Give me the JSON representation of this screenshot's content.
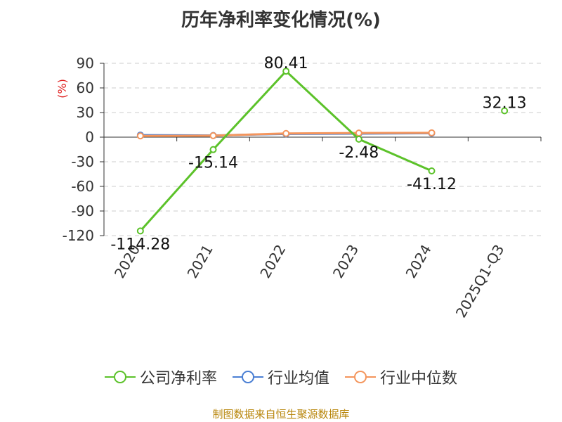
{
  "chart_data": {
    "type": "line",
    "title": "历年净利率变化情况(%)",
    "ylabel": "(%)",
    "xlabel": "",
    "categories": [
      "2020",
      "2021",
      "2022",
      "2023",
      "2024",
      "2025Q1-Q3"
    ],
    "ylim": [
      -120,
      90
    ],
    "yticks": [
      90,
      60,
      30,
      0,
      -30,
      -60,
      -90,
      -120
    ],
    "grid": true,
    "legend_position": "bottom",
    "series": [
      {
        "name": "公司净利率",
        "color": "#5cc22a",
        "values": [
          -114.28,
          -15.14,
          80.41,
          -2.48,
          -41.12,
          32.13
        ],
        "labels": [
          "-114.28",
          "-15.14",
          "80.41",
          "-2.48",
          "-41.12",
          "32.13"
        ],
        "segment_gaps": [
          4
        ]
      },
      {
        "name": "行业均值",
        "color": "#4a7fd4",
        "values": [
          2.5,
          2.0,
          4.0,
          4.3,
          4.8,
          null
        ]
      },
      {
        "name": "行业中位数",
        "color": "#f4955c",
        "values": [
          1.5,
          1.8,
          4.5,
          5.0,
          5.3,
          null
        ]
      }
    ]
  },
  "source": "制图数据来自恒生聚源数据库"
}
